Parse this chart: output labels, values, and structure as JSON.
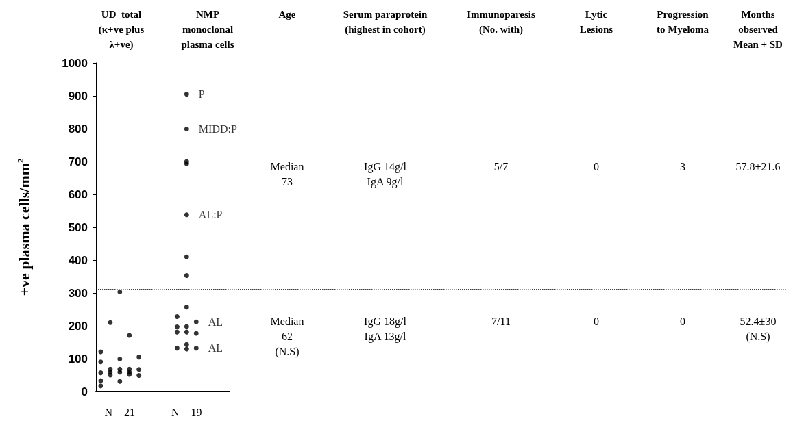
{
  "chart_data": {
    "type": "scatter",
    "ylabel": "+ve plasma cells/mm$^{2}$",
    "categories": [
      null,
      null,
      "N = 21",
      null,
      null,
      null,
      null,
      null,
      null,
      "N = 19",
      null,
      null,
      null,
      null
    ],
    "series": [
      {
        "color": "#000000",
        "values": [
          121,
          210,
          303,
          171,
          105,
          null,
          null,
          null,
          228,
          905,
          212,
          null,
          null,
          null
        ],
        "value_labels": [
          null,
          null,
          null,
          null,
          null,
          null,
          null,
          null,
          null,
          "P",
          "AL",
          null,
          null,
          null
        ]
      },
      {
        "color": "#000000",
        "values": [
          90,
          68,
          99,
          68,
          67,
          null,
          null,
          null,
          197,
          799,
          177,
          null,
          null,
          null
        ],
        "value_labels": [
          null,
          null,
          null,
          null,
          null,
          null,
          null,
          null,
          null,
          "MIDD:P",
          null,
          null,
          null,
          null
        ]
      },
      {
        "color": "#000000",
        "values": [
          57,
          59,
          68,
          59,
          49,
          null,
          null,
          null,
          181,
          700,
          132,
          null,
          null,
          null
        ],
        "value_labels": [
          null,
          null,
          null,
          null,
          null,
          null,
          null,
          null,
          null,
          null,
          "AL",
          null,
          null,
          null
        ]
      },
      {
        "color": "#000000",
        "values": [
          33,
          50,
          59,
          52,
          null,
          null,
          null,
          null,
          132,
          693,
          null,
          null,
          null,
          null
        ]
      },
      {
        "color": "#000000",
        "values": [
          17,
          null,
          31,
          null,
          null,
          null,
          null,
          null,
          null,
          538,
          null,
          null,
          null,
          null
        ],
        "value_labels": [
          null,
          null,
          null,
          null,
          null,
          null,
          null,
          null,
          null,
          "AL:P",
          null,
          null,
          null,
          null
        ]
      },
      {
        "color": "#000000",
        "values": [
          null,
          null,
          null,
          null,
          null,
          null,
          null,
          null,
          null,
          410,
          null,
          null,
          null,
          null
        ]
      },
      {
        "color": "#000000",
        "values": [
          null,
          null,
          null,
          null,
          null,
          null,
          null,
          null,
          null,
          353,
          null,
          null,
          null,
          null
        ]
      },
      {
        "color": "#000000",
        "values": [
          null,
          null,
          null,
          null,
          null,
          null,
          null,
          null,
          null,
          257,
          null,
          null,
          null,
          null
        ]
      },
      {
        "color": "#000000",
        "values": [
          null,
          null,
          null,
          null,
          null,
          null,
          null,
          null,
          null,
          198,
          null,
          null,
          null,
          null
        ]
      },
      {
        "color": "#000000",
        "values": [
          null,
          null,
          null,
          null,
          null,
          null,
          null,
          null,
          null,
          181,
          null,
          null,
          null,
          null
        ]
      },
      {
        "color": "#000000",
        "values": [
          null,
          null,
          null,
          null,
          null,
          null,
          null,
          null,
          null,
          143,
          null,
          null,
          null,
          null
        ]
      },
      {
        "color": "#000000",
        "values": [
          null,
          null,
          null,
          null,
          null,
          null,
          null,
          null,
          null,
          129,
          null,
          null,
          null,
          null
        ]
      }
    ],
    "ylim": [
      0,
      1000
    ],
    "yticks": [
      0,
      100,
      200,
      300,
      400,
      500,
      600,
      700,
      800,
      900,
      1000
    ],
    "ref_lines": [
      {
        "axis": "y",
        "value": 310,
        "color": "#000000",
        "line_style": "dotted"
      }
    ],
    "marker": "circle",
    "grid": false,
    "annotations": [
      "UD  total\n(κ+ve plus\nλ+ve)",
      "NMP\nmonoclonal\nplasma cells",
      "Age",
      "Serum paraprotein\n(highest in cohort)",
      "Immunoparesis\n(No. with)",
      "Lytic\nLesions",
      "Progression\nto Myeloma",
      "Months\nobserved\nMean + SD",
      "Median\n73",
      "IgG 14g/l\nIgA 9g/l",
      "5/7",
      "0",
      "3",
      "57.8+21.6",
      "Median\n62\n(N.S)",
      "IgG 18g/l\nIgA 13g/l",
      "7/11",
      "0",
      "0",
      "52.4±30\n(N.S)"
    ]
  }
}
